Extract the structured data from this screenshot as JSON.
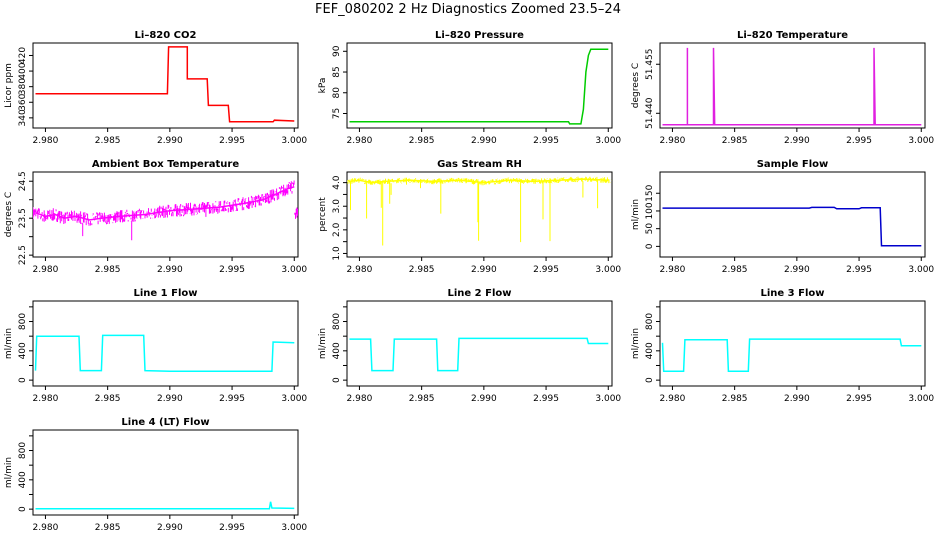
{
  "figure": {
    "title": "FEF_080202  2 Hz Diagnostics Zoomed 23.5–24"
  },
  "chart_data": [
    {
      "type": "line",
      "title": "Li–820 CO2",
      "ylabel": "Licor ppm",
      "color": "#ff0000",
      "xlim": [
        2.979,
        3.0003
      ],
      "ylim": [
        327,
        436
      ],
      "xticks": [
        2.98,
        2.985,
        2.99,
        2.995,
        3.0
      ],
      "yticks": [
        340,
        360,
        380,
        400,
        420
      ],
      "series": [
        {
          "values": [
            [
              2.9792,
              371
            ],
            [
              2.9898,
              371
            ],
            [
              2.9899,
              431
            ],
            [
              2.9914,
              431
            ],
            [
              2.9914,
              390
            ],
            [
              2.993,
              390
            ],
            [
              2.9931,
              356
            ],
            [
              2.9947,
              356
            ],
            [
              2.9948,
              335
            ],
            [
              2.9983,
              335
            ],
            [
              2.9984,
              337
            ],
            [
              3.0,
              336
            ]
          ]
        }
      ]
    },
    {
      "type": "line",
      "title": "Li–820 Pressure",
      "ylabel": "kPa",
      "color": "#00cc00",
      "xlim": [
        2.979,
        3.0003
      ],
      "ylim": [
        71.5,
        92
      ],
      "xticks": [
        2.98,
        2.985,
        2.99,
        2.995,
        3.0
      ],
      "yticks": [
        75,
        80,
        85,
        90
      ],
      "series": [
        {
          "values": [
            [
              2.9792,
              73
            ],
            [
              2.9968,
              73
            ],
            [
              2.9969,
              72.5
            ],
            [
              2.9978,
              72.5
            ],
            [
              2.998,
              76
            ],
            [
              2.9982,
              85
            ],
            [
              2.9984,
              89
            ],
            [
              2.9986,
              90.5
            ],
            [
              3.0,
              90.5
            ]
          ]
        }
      ]
    },
    {
      "type": "line",
      "title": "Li–820 Temperature",
      "ylabel": "degrees C",
      "color": "#e020e0",
      "xlim": [
        2.979,
        3.0003
      ],
      "ylim": [
        51.4355,
        51.4615
      ],
      "xticks": [
        2.98,
        2.985,
        2.99,
        2.995,
        3.0
      ],
      "yticks": [
        51.44,
        51.455
      ],
      "yticklabels": [
        "51.440",
        "51.455"
      ],
      "series": [
        {
          "values": [
            [
              2.9792,
              51.4365
            ],
            [
              2.9812,
              51.4365
            ],
            [
              2.9812,
              51.46
            ],
            [
              2.9812,
              51.4365
            ],
            [
              2.9833,
              51.4365
            ],
            [
              2.9833,
              51.46
            ],
            [
              2.9834,
              51.4365
            ],
            [
              2.9962,
              51.4365
            ],
            [
              2.9962,
              51.46
            ],
            [
              2.9963,
              51.4365
            ],
            [
              3.0,
              51.4365
            ]
          ]
        }
      ]
    },
    {
      "type": "line",
      "title": "Ambient Box Temperature",
      "ylabel": "degrees C",
      "color": "#ff00ff",
      "xlim": [
        2.979,
        3.0003
      ],
      "ylim": [
        22.45,
        24.75
      ],
      "xticks": [
        2.98,
        2.985,
        2.99,
        2.995,
        3.0
      ],
      "yticks": [
        22.5,
        23.0,
        23.5,
        24.0,
        24.5
      ],
      "yticklabels": [
        "22.5",
        "",
        "23.5",
        "",
        "24.5"
      ],
      "series": [
        {
          "values": [
            [
              2.9792,
              23.65
            ],
            [
              2.98,
              23.55
            ],
            [
              2.9808,
              23.6
            ],
            [
              2.9815,
              23.5
            ],
            [
              2.9825,
              23.55
            ],
            [
              2.9835,
              23.45
            ],
            [
              2.9845,
              23.5
            ],
            [
              2.986,
              23.55
            ],
            [
              2.988,
              23.6
            ],
            [
              2.99,
              23.7
            ],
            [
              2.992,
              23.75
            ],
            [
              2.994,
              23.8
            ],
            [
              2.996,
              23.9
            ],
            [
              2.9975,
              24.0
            ],
            [
              2.9985,
              24.15
            ],
            [
              2.9995,
              24.3
            ],
            [
              3.0,
              24.35
            ]
          ]
        }
      ]
    },
    {
      "type": "line",
      "title": "Gas Stream RH",
      "ylabel": "percent",
      "color": "#ffff00",
      "xlim": [
        2.979,
        3.0003
      ],
      "ylim": [
        0.85,
        4.45
      ],
      "xticks": [
        2.98,
        2.985,
        2.99,
        2.995,
        3.0
      ],
      "yticks": [
        1.0,
        1.5,
        2.0,
        2.5,
        3.0,
        3.5,
        4.0
      ],
      "yticklabels": [
        "1.0",
        "",
        "2.0",
        "",
        "3.0",
        "",
        "4.0"
      ],
      "series": [
        {
          "values": [
            [
              2.9792,
              4.05
            ],
            [
              2.98,
              4.1
            ],
            [
              2.981,
              4.0
            ],
            [
              2.982,
              4.05
            ],
            [
              2.984,
              4.1
            ],
            [
              2.986,
              4.05
            ],
            [
              2.988,
              4.1
            ],
            [
              2.99,
              4.0
            ],
            [
              2.992,
              4.1
            ],
            [
              2.994,
              4.05
            ],
            [
              2.996,
              4.1
            ],
            [
              2.998,
              4.15
            ],
            [
              3.0,
              4.1
            ]
          ]
        }
      ]
    },
    {
      "type": "line",
      "title": "Sample Flow",
      "ylabel": "ml/min",
      "color": "#0000cc",
      "xlim": [
        2.979,
        3.0003
      ],
      "ylim": [
        -30,
        210
      ],
      "xticks": [
        2.98,
        2.985,
        2.99,
        2.995,
        3.0
      ],
      "yticks": [
        0,
        50,
        100,
        150
      ],
      "series": [
        {
          "values": [
            [
              2.9792,
              108
            ],
            [
              2.991,
              108
            ],
            [
              2.9912,
              110
            ],
            [
              2.993,
              110
            ],
            [
              2.9932,
              106
            ],
            [
              2.995,
              106
            ],
            [
              2.9952,
              109
            ],
            [
              2.9967,
              109
            ],
            [
              2.9968,
              2
            ],
            [
              3.0,
              2
            ]
          ]
        }
      ]
    },
    {
      "type": "line",
      "title": "Line 1 Flow",
      "ylabel": "ml/min",
      "color": "#00ffff",
      "xlim": [
        2.979,
        3.0003
      ],
      "ylim": [
        -80,
        1080
      ],
      "xticks": [
        2.98,
        2.985,
        2.99,
        2.995,
        3.0
      ],
      "yticks": [
        0,
        200,
        400,
        600,
        800,
        1000
      ],
      "yticklabels": [
        "0",
        "",
        "400",
        "",
        "800",
        ""
      ],
      "series": [
        {
          "values": [
            [
              2.9792,
              130
            ],
            [
              2.9793,
              600
            ],
            [
              2.9827,
              600
            ],
            [
              2.9828,
              130
            ],
            [
              2.9845,
              130
            ],
            [
              2.9846,
              610
            ],
            [
              2.9879,
              610
            ],
            [
              2.988,
              130
            ],
            [
              2.99,
              120
            ],
            [
              2.9982,
              120
            ],
            [
              2.9983,
              520
            ],
            [
              3.0,
              510
            ]
          ]
        }
      ]
    },
    {
      "type": "line",
      "title": "Line 2 Flow",
      "ylabel": "ml/min",
      "color": "#00ffff",
      "xlim": [
        2.979,
        3.0003
      ],
      "ylim": [
        -80,
        1080
      ],
      "xticks": [
        2.98,
        2.985,
        2.99,
        2.995,
        3.0
      ],
      "yticks": [
        0,
        200,
        400,
        600,
        800,
        1000
      ],
      "yticklabels": [
        "0",
        "",
        "400",
        "",
        "800",
        ""
      ],
      "series": [
        {
          "values": [
            [
              2.9792,
              560
            ],
            [
              2.9809,
              560
            ],
            [
              2.981,
              130
            ],
            [
              2.9827,
              130
            ],
            [
              2.9828,
              560
            ],
            [
              2.9862,
              560
            ],
            [
              2.9863,
              130
            ],
            [
              2.9879,
              130
            ],
            [
              2.988,
              570
            ],
            [
              2.9983,
              570
            ],
            [
              2.9984,
              500
            ],
            [
              3.0,
              500
            ]
          ]
        }
      ]
    },
    {
      "type": "line",
      "title": "Line 3 Flow",
      "ylabel": "ml/min",
      "color": "#00ffff",
      "xlim": [
        2.979,
        3.0003
      ],
      "ylim": [
        -80,
        1080
      ],
      "xticks": [
        2.98,
        2.985,
        2.99,
        2.995,
        3.0
      ],
      "yticks": [
        0,
        200,
        400,
        600,
        800,
        1000
      ],
      "yticklabels": [
        "0",
        "",
        "400",
        "",
        "800",
        ""
      ],
      "series": [
        {
          "values": [
            [
              2.9792,
              510
            ],
            [
              2.9793,
              120
            ],
            [
              2.9809,
              120
            ],
            [
              2.981,
              550
            ],
            [
              2.9844,
              550
            ],
            [
              2.9845,
              120
            ],
            [
              2.9861,
              120
            ],
            [
              2.9862,
              560
            ],
            [
              2.9983,
              560
            ],
            [
              2.9984,
              470
            ],
            [
              3.0,
              470
            ]
          ]
        }
      ]
    },
    {
      "type": "line",
      "title": "Line 4 (LT) Flow",
      "ylabel": "ml/min",
      "color": "#00ffff",
      "xlim": [
        2.979,
        3.0003
      ],
      "ylim": [
        -80,
        1080
      ],
      "xticks": [
        2.98,
        2.985,
        2.99,
        2.995,
        3.0
      ],
      "yticks": [
        0,
        200,
        400,
        600,
        800,
        1000
      ],
      "yticklabels": [
        "0",
        "",
        "400",
        "",
        "800",
        ""
      ],
      "series": [
        {
          "values": [
            [
              2.9792,
              5
            ],
            [
              2.998,
              5
            ],
            [
              2.9981,
              100
            ],
            [
              2.9982,
              15
            ],
            [
              3.0,
              10
            ]
          ]
        }
      ]
    }
  ]
}
